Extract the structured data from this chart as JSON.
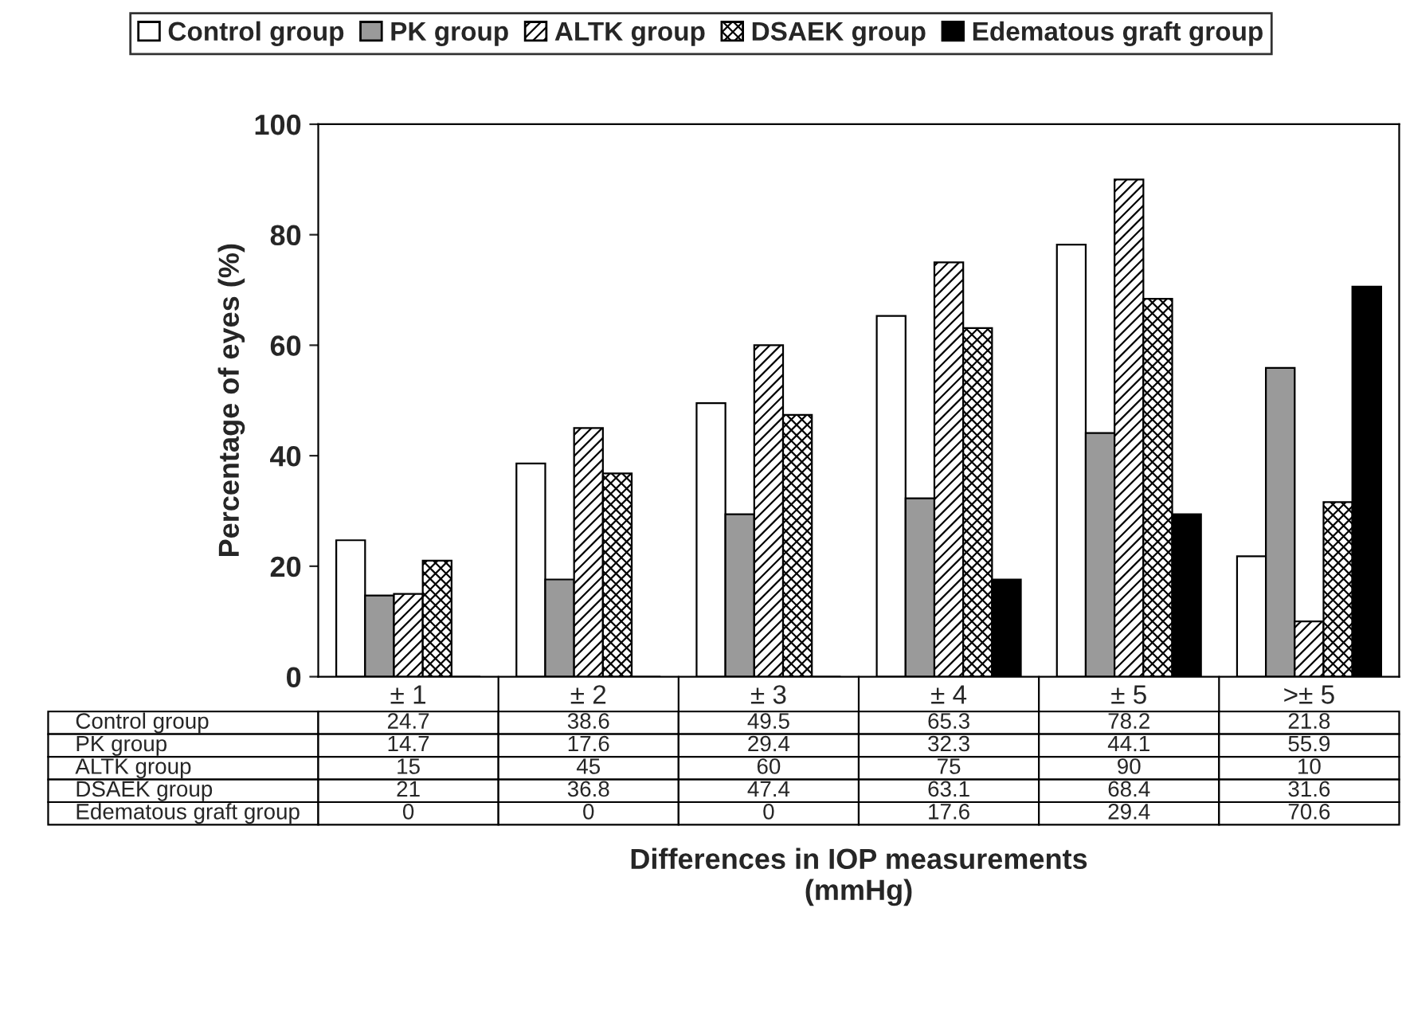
{
  "chart_data": {
    "type": "bar",
    "categories": [
      "± 1",
      "± 2",
      "± 3",
      "± 4",
      "± 5",
      ">± 5"
    ],
    "ylabel": "Percentage of eyes (%)",
    "annotations": [
      "Differences in IOP measurements\n(mmHg)"
    ],
    "ylim": [
      0,
      100
    ],
    "yticks": [
      0,
      20,
      40,
      60,
      80,
      100
    ],
    "series": [
      {
        "name": "Control group",
        "color": "#ffffff",
        "values": [
          24.7,
          38.6,
          49.5,
          65.3,
          78.2,
          21.8
        ]
      },
      {
        "name": "PK group",
        "color": "#9a9a9a",
        "values": [
          14.7,
          17.6,
          29.4,
          32.3,
          44.1,
          55.9
        ]
      },
      {
        "name": "ALTK group",
        "color": "#000000",
        "values": [
          15,
          45,
          60,
          75,
          90,
          10
        ]
      },
      {
        "name": "DSAEK group",
        "color": "#000000",
        "values": [
          21,
          36.8,
          47.4,
          63.1,
          68.4,
          31.6
        ]
      },
      {
        "name": "Edematous graft group",
        "color": "#000000",
        "values": [
          0,
          0,
          0,
          17.6,
          29.4,
          70.6
        ]
      }
    ],
    "data_labels": true,
    "legend": "top",
    "grid": false
  }
}
